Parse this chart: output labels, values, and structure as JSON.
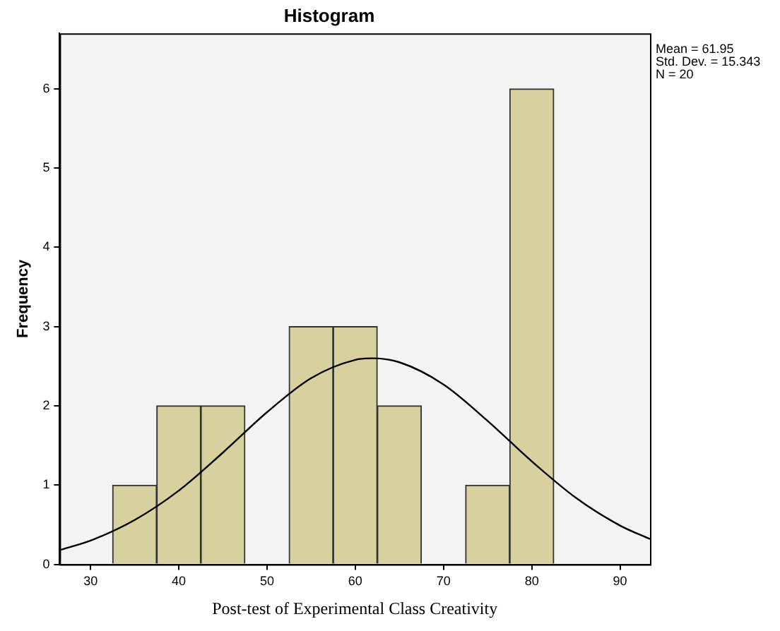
{
  "chart_data": {
    "type": "histogram",
    "title": "Histogram",
    "xlabel": "Post-test of Experimental Class Creativity",
    "ylabel": "Frequency",
    "bins": [
      32.5,
      37.5,
      42.5,
      47.5,
      52.5,
      57.5,
      62.5,
      67.5,
      72.5,
      77.5,
      82.5
    ],
    "values": [
      1,
      2,
      2,
      0,
      3,
      3,
      2,
      0,
      1,
      6
    ],
    "color": "#d6d19e",
    "series": [
      {
        "type": "line",
        "color": "#000000",
        "x": [
          26.5,
          30,
          35,
          40,
          45,
          50,
          55,
          60,
          61.95,
          65,
          70,
          75,
          80,
          85,
          90,
          93.4
        ],
        "values": [
          0.18,
          0.3,
          0.56,
          0.93,
          1.41,
          1.92,
          2.35,
          2.58,
          2.6,
          2.55,
          2.27,
          1.81,
          1.3,
          0.84,
          0.49,
          0.32
        ]
      }
    ],
    "xlim": [
      26.5,
      93.4
    ],
    "xticks": [
      30,
      40,
      50,
      60,
      70,
      80,
      90
    ],
    "ylim": [
      0,
      6.7
    ],
    "yticks": [
      0,
      1,
      2,
      3,
      4,
      5,
      6
    ],
    "annotations": [
      "Mean = 61.95",
      "Std. Dev. = 15.343",
      "N = 20"
    ],
    "grid": false,
    "legend": false,
    "marker": "none"
  }
}
